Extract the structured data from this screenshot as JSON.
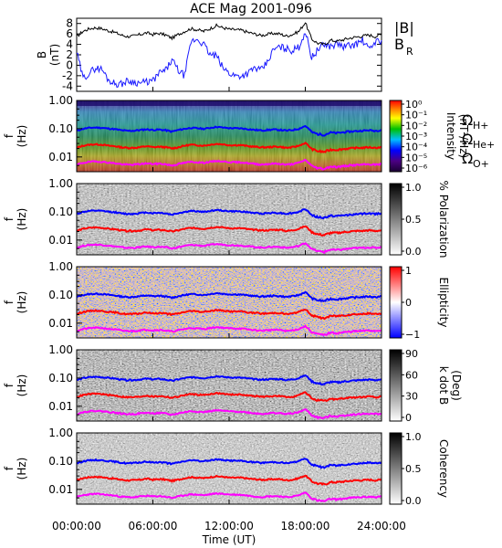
{
  "title": "ACE Mag 2001-096",
  "colors": {
    "btotal": "#000000",
    "br": "#1a1aff",
    "h": "#0000ff",
    "he": "#ff0000",
    "o": "#ff00ff"
  },
  "xaxis": {
    "label": "Time (UT)",
    "ticks": [
      "00:00:00",
      "06:00:00",
      "12:00:00",
      "18:00:00",
      "24:00:00"
    ],
    "tick_hours": [
      0,
      6,
      12,
      18,
      24
    ],
    "range_hours": [
      0,
      24
    ]
  },
  "chart_data": [
    {
      "type": "line",
      "panel": "magnetic-field",
      "ylabel": "B",
      "yunit": "(nT)",
      "ylim": [
        -5,
        9
      ],
      "yticks": [
        -4,
        -2,
        0,
        2,
        4,
        6,
        8
      ],
      "legend": [
        "|B|",
        "B",
        "R"
      ],
      "series": [
        {
          "name": "|B|",
          "x": [
            0,
            0.5,
            1,
            1.5,
            2,
            2.5,
            3,
            3.5,
            4,
            4.5,
            5,
            5.5,
            6,
            6.5,
            7,
            7.5,
            8,
            8.5,
            9,
            9.5,
            10,
            10.5,
            11,
            11.5,
            12,
            12.5,
            13,
            13.5,
            14,
            14.5,
            15,
            15.5,
            16,
            16.5,
            17,
            17.5,
            18,
            18.5,
            19,
            19.5,
            20,
            20.5,
            21,
            21.5,
            22,
            22.5,
            23,
            23.5,
            24
          ],
          "y": [
            5.5,
            6.5,
            7.0,
            7.2,
            7.0,
            6.6,
            6.3,
            5.8,
            5.5,
            5.6,
            5.9,
            6.2,
            5.9,
            6.1,
            5.8,
            5.2,
            5.9,
            6.5,
            7.0,
            6.8,
            6.5,
            7.0,
            7.6,
            7.2,
            6.9,
            6.8,
            6.7,
            6.3,
            6.0,
            5.7,
            5.9,
            6.1,
            6.0,
            5.6,
            5.9,
            6.5,
            8.2,
            5.0,
            4.2,
            4.0,
            4.8,
            4.6,
            4.9,
            5.2,
            5.4,
            5.6,
            5.8,
            5.5,
            5.9
          ]
        },
        {
          "name": "B_R",
          "x": [
            0,
            0.5,
            1,
            1.5,
            2,
            2.5,
            3,
            3.5,
            4,
            4.5,
            5,
            5.5,
            6,
            6.5,
            7,
            7.5,
            8,
            8.5,
            9,
            9.5,
            10,
            10.5,
            11,
            11.5,
            12,
            12.5,
            13,
            13.5,
            14,
            14.5,
            15,
            15.5,
            16,
            16.5,
            17,
            17.5,
            18,
            18.5,
            19,
            19.5,
            20,
            20.5,
            21,
            21.5,
            22,
            22.5,
            23,
            23.5,
            24
          ],
          "y": [
            2.5,
            -2.5,
            -1.5,
            -0.5,
            -0.8,
            -2.8,
            -3.5,
            -3.6,
            -3.0,
            -3.2,
            -3.4,
            -3.2,
            -3.0,
            -1.5,
            -1.0,
            1.0,
            -1.0,
            -2.0,
            4.5,
            5.0,
            4.0,
            2.0,
            1.8,
            -0.5,
            -1.5,
            -2.0,
            -2.0,
            -1.5,
            -0.5,
            -1.0,
            0.5,
            3.0,
            3.5,
            3.2,
            2.8,
            3.5,
            6.5,
            1.5,
            3.0,
            4.0,
            3.6,
            4.2,
            3.5,
            3.8,
            4.0,
            4.8,
            3.0,
            4.5,
            4.8
          ]
        }
      ]
    },
    {
      "type": "heatmap",
      "panel": "intensity",
      "ylabel": "f",
      "yunit": "(Hz)",
      "yscale": "log",
      "ylim": [
        0.003,
        1.0
      ],
      "yticks": [
        "1.00",
        "0.10",
        "0.01"
      ],
      "colorbar": {
        "label": "Intensity",
        "unit": "(nT²/Hz)",
        "ticks": [
          "10⁰",
          "10⁻¹",
          "10⁻²",
          "10⁻³",
          "10⁻⁴",
          "10⁻⁵",
          "10⁻⁶"
        ],
        "scale": "rainbow"
      },
      "overlay_labels": [
        "Ω",
        "H+",
        "Ω",
        "He+",
        "Ω",
        "O+"
      ]
    },
    {
      "type": "heatmap",
      "panel": "polarization",
      "ylabel": "f",
      "yunit": "(Hz)",
      "yscale": "log",
      "ylim": [
        0.003,
        1.0
      ],
      "yticks": [
        "1.00",
        "0.10",
        "0.01"
      ],
      "colorbar": {
        "label": "% Polarization",
        "unit": "",
        "ticks": [
          "1.0",
          "0.5",
          "0.0"
        ],
        "scale": "gray"
      }
    },
    {
      "type": "heatmap",
      "panel": "ellipticity",
      "ylabel": "f",
      "yunit": "(Hz)",
      "yscale": "log",
      "ylim": [
        0.003,
        1.0
      ],
      "yticks": [
        "1.00",
        "0.10",
        "0.01"
      ],
      "colorbar": {
        "label": "Ellipticity",
        "unit": "",
        "ticks": [
          "1",
          "0",
          "−1"
        ],
        "scale": "bwr"
      }
    },
    {
      "type": "heatmap",
      "panel": "wave-normal-angle",
      "ylabel": "f",
      "yunit": "(Hz)",
      "yscale": "log",
      "ylim": [
        0.003,
        1.0
      ],
      "yticks": [
        "1.00",
        "0.10",
        "0.01"
      ],
      "colorbar": {
        "label": "k dot B",
        "unit": "(Deg)",
        "ticks": [
          "90",
          "60",
          "30",
          "0"
        ],
        "scale": "gray"
      }
    },
    {
      "type": "heatmap",
      "panel": "coherency",
      "ylabel": "f",
      "yunit": "(Hz)",
      "yscale": "log",
      "ylim": [
        0.003,
        1.0
      ],
      "yticks": [
        "1.00",
        "0.10",
        "0.01"
      ],
      "colorbar": {
        "label": "Coherency",
        "unit": "",
        "ticks": [
          "1.0",
          "0.5",
          "0.0"
        ],
        "scale": "gray"
      }
    }
  ],
  "gyrofrequencies": {
    "x": [
      0,
      0.5,
      1,
      1.5,
      2,
      2.5,
      3,
      3.5,
      4,
      4.5,
      5,
      5.5,
      6,
      6.5,
      7,
      7.5,
      8,
      8.5,
      9,
      9.5,
      10,
      10.5,
      11,
      11.5,
      12,
      12.5,
      13,
      13.5,
      14,
      14.5,
      15,
      15.5,
      16,
      16.5,
      17,
      17.5,
      18,
      18.5,
      19,
      19.5,
      20,
      20.5,
      21,
      21.5,
      22,
      22.5,
      23,
      23.5,
      24
    ],
    "H+": [
      0.084,
      0.099,
      0.107,
      0.11,
      0.107,
      0.101,
      0.096,
      0.088,
      0.084,
      0.085,
      0.09,
      0.095,
      0.09,
      0.093,
      0.088,
      0.079,
      0.09,
      0.099,
      0.107,
      0.104,
      0.099,
      0.107,
      0.116,
      0.11,
      0.105,
      0.104,
      0.102,
      0.096,
      0.091,
      0.087,
      0.09,
      0.093,
      0.091,
      0.085,
      0.09,
      0.099,
      0.125,
      0.076,
      0.064,
      0.061,
      0.073,
      0.07,
      0.075,
      0.079,
      0.082,
      0.085,
      0.088,
      0.084,
      0.09
    ],
    "He+": [
      0.021,
      0.025,
      0.027,
      0.028,
      0.027,
      0.025,
      0.024,
      0.022,
      0.021,
      0.021,
      0.022,
      0.024,
      0.022,
      0.023,
      0.022,
      0.02,
      0.022,
      0.025,
      0.027,
      0.026,
      0.025,
      0.027,
      0.029,
      0.028,
      0.026,
      0.026,
      0.026,
      0.024,
      0.023,
      0.022,
      0.022,
      0.023,
      0.023,
      0.021,
      0.022,
      0.025,
      0.031,
      0.019,
      0.016,
      0.015,
      0.018,
      0.018,
      0.019,
      0.02,
      0.021,
      0.021,
      0.022,
      0.021,
      0.022
    ],
    "O+": [
      0.0053,
      0.0062,
      0.0067,
      0.0069,
      0.0067,
      0.0063,
      0.006,
      0.0055,
      0.0053,
      0.0053,
      0.0056,
      0.0059,
      0.0056,
      0.0058,
      0.0055,
      0.005,
      0.0056,
      0.0062,
      0.0067,
      0.0065,
      0.0062,
      0.0067,
      0.0072,
      0.0069,
      0.0066,
      0.0065,
      0.0064,
      0.006,
      0.0057,
      0.0054,
      0.0056,
      0.0058,
      0.0057,
      0.0053,
      0.0056,
      0.0062,
      0.0078,
      0.0048,
      0.004,
      0.0038,
      0.0046,
      0.0044,
      0.0047,
      0.005,
      0.0052,
      0.0053,
      0.0055,
      0.0053,
      0.0056
    ]
  }
}
